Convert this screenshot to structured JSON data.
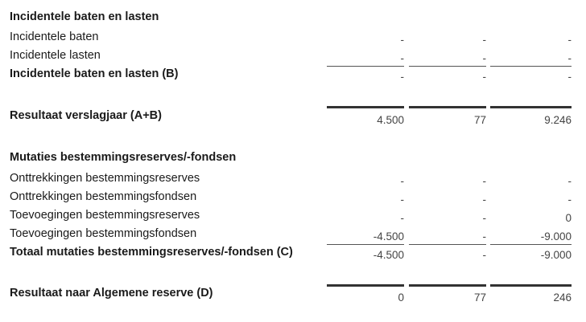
{
  "sections": {
    "incidentele": {
      "heading": "Incidentele baten en lasten",
      "rows": [
        {
          "label": "Incidentele baten",
          "values": [
            "-",
            "-",
            "-"
          ]
        },
        {
          "label": "Incidentele lasten",
          "values": [
            "-",
            "-",
            "-"
          ]
        }
      ],
      "total": {
        "label": "Incidentele baten en lasten (B)",
        "values": [
          "-",
          "-",
          "-"
        ]
      }
    },
    "resultaat_verslagjaar": {
      "label": "Resultaat verslagjaar (A+B)",
      "values": [
        "4.500",
        "77",
        "9.246"
      ]
    },
    "mutaties": {
      "heading": "Mutaties bestemmingsreserves/-fondsen",
      "rows": [
        {
          "label": "Onttrekkingen bestemmingsreserves",
          "values": [
            "-",
            "-",
            "-"
          ]
        },
        {
          "label": "Onttrekkingen bestemmingsfondsen",
          "values": [
            "-",
            "-",
            "-"
          ]
        },
        {
          "label": "Toevoegingen bestemmingsreserves",
          "values": [
            "-",
            "-",
            "0"
          ]
        },
        {
          "label": "Toevoegingen bestemmingsfondsen",
          "values": [
            "-4.500",
            "-",
            "-9.000"
          ]
        }
      ],
      "total": {
        "label": "Totaal mutaties bestemmingsreserves/-fondsen (C)",
        "values": [
          "-4.500",
          "-",
          "-9.000"
        ]
      }
    },
    "resultaat_algemene": {
      "label": "Resultaat naar Algemene reserve (D)",
      "values": [
        "0",
        "77",
        "246"
      ]
    }
  }
}
